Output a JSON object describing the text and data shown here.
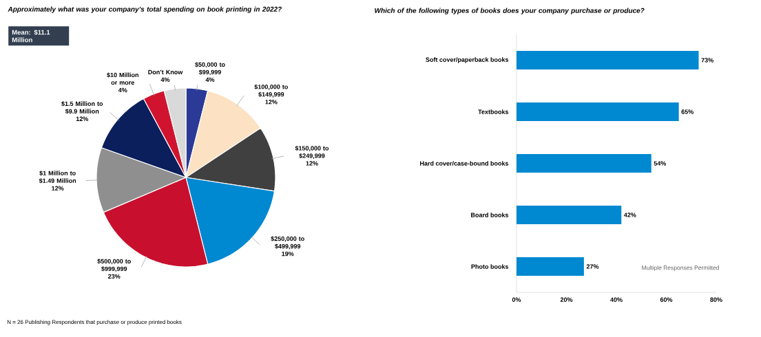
{
  "chart_data": [
    {
      "type": "pie",
      "title": "Approximately what was your company’s total spending on book printing in 2022?",
      "categories": [
        "$50,000 to $99,999",
        "$100,000 to $149,999",
        "$150,000 to $249,999",
        "$250,000 to $499,999",
        "$500,000 to $999,999",
        "$1 Million to $1.49 Million",
        "$1.5 Million to $9.9 Million",
        "$10 Million or more",
        "Don’t Know"
      ],
      "values": [
        4,
        12,
        12,
        19,
        23,
        12,
        12,
        4,
        4
      ],
      "value_labels": [
        "4%",
        "12%",
        "12%",
        "19%",
        "23%",
        "12%",
        "12%",
        "4%",
        "4%"
      ],
      "colors": [
        "#2B3A97",
        "#FCE1C2",
        "#404040",
        "#0088D1",
        "#C8102E",
        "#8F8F8F",
        "#0A1F5C",
        "#D0142F",
        "#D9D9D9"
      ],
      "annotations": [
        "Mean: $11.1 Million",
        "N = 26 Publishing  Respondents that purchase or produce printed books"
      ]
    },
    {
      "type": "bar",
      "orientation": "horizontal",
      "title": "Which of the following types of books does your company purchase or produce?",
      "categories": [
        "Soft cover/paperback books",
        "Textbooks",
        "Hard cover/case-bound books",
        "Board books",
        "Photo books"
      ],
      "values": [
        73,
        65,
        54,
        42,
        27
      ],
      "value_labels": [
        "73%",
        "65%",
        "54%",
        "42%",
        "27%"
      ],
      "color": "#0088D1",
      "xlim": [
        0,
        80
      ],
      "xticks": [
        {
          "value": 0,
          "label": "0%"
        },
        {
          "value": 20,
          "label": "20%"
        },
        {
          "value": 40,
          "label": "40%"
        },
        {
          "value": 60,
          "label": "60%"
        },
        {
          "value": 80,
          "label": "80%"
        }
      ],
      "annotations": [
        "Multiple Responses Permitted"
      ]
    }
  ]
}
